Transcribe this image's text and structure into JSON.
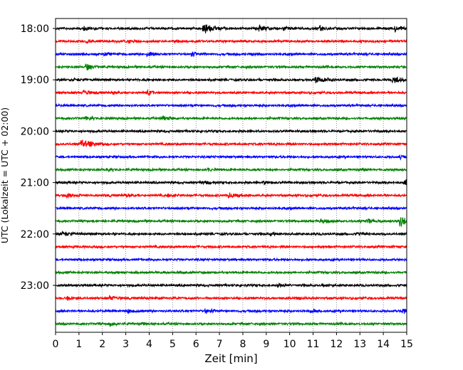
{
  "chart_data": {
    "type": "line",
    "title": "",
    "xlabel": "Zeit  [min]",
    "ylabel": "UTC (Lokalzeit = UTC + 02:00)",
    "xlim": [
      0,
      15
    ],
    "x_ticks": [
      "0",
      "1",
      "2",
      "3",
      "4",
      "5",
      "6",
      "7",
      "8",
      "9",
      "10",
      "11",
      "12",
      "13",
      "14",
      "15"
    ],
    "y_ticks": [
      {
        "label": "18:00",
        "row": 0
      },
      {
        "label": "19:00",
        "row": 4
      },
      {
        "label": "20:00",
        "row": 8
      },
      {
        "label": "21:00",
        "row": 12
      },
      {
        "label": "22:00",
        "row": 16
      },
      {
        "label": "23:00",
        "row": 20
      }
    ],
    "grid": "vertical dotted lines at each minute",
    "row_interval_minutes": 15,
    "colors": [
      "#000000",
      "#ff0000",
      "#0000ff",
      "#008000"
    ],
    "series": [
      {
        "start": "18:00",
        "color": "#000000",
        "events": [
          [
            1.2,
            0.45
          ],
          [
            6.3,
            1.0
          ],
          [
            8.7,
            0.6
          ],
          [
            9.7,
            0.35
          ],
          [
            11.3,
            0.45
          ],
          [
            14.5,
            0.55
          ]
        ]
      },
      {
        "start": "18:15",
        "color": "#ff0000",
        "events": [
          [
            1.3,
            0.3
          ],
          [
            3.1,
            0.3
          ],
          [
            5.1,
            0.25
          ],
          [
            8.0,
            0.2
          ]
        ]
      },
      {
        "start": "18:30",
        "color": "#0000ff",
        "events": [
          [
            2.1,
            0.25
          ],
          [
            3.9,
            0.4
          ],
          [
            5.8,
            0.35
          ],
          [
            8.3,
            0.25
          ],
          [
            15.0,
            0.4
          ]
        ]
      },
      {
        "start": "18:45",
        "color": "#008000",
        "events": [
          [
            1.3,
            0.6
          ]
        ]
      },
      {
        "start": "19:00",
        "color": "#000000",
        "events": [
          [
            0.8,
            0.25
          ],
          [
            11.1,
            0.7
          ],
          [
            14.4,
            0.7
          ]
        ]
      },
      {
        "start": "19:15",
        "color": "#ff0000",
        "events": [
          [
            1.2,
            0.45
          ],
          [
            2.4,
            0.3
          ],
          [
            3.9,
            0.45
          ]
        ]
      },
      {
        "start": "19:30",
        "color": "#0000ff",
        "events": []
      },
      {
        "start": "19:45",
        "color": "#008000",
        "events": [
          [
            1.3,
            0.35
          ],
          [
            2.1,
            0.25
          ],
          [
            4.6,
            0.4
          ]
        ]
      },
      {
        "start": "20:00",
        "color": "#000000",
        "events": []
      },
      {
        "start": "20:15",
        "color": "#ff0000",
        "events": [
          [
            1.1,
            0.7
          ],
          [
            1.4,
            0.35
          ]
        ]
      },
      {
        "start": "20:30",
        "color": "#0000ff",
        "events": [
          [
            14.7,
            0.3
          ]
        ]
      },
      {
        "start": "20:45",
        "color": "#008000",
        "events": [
          [
            2.2,
            0.3
          ],
          [
            6.5,
            0.2
          ],
          [
            8.5,
            0.2
          ],
          [
            13.1,
            0.25
          ]
        ]
      },
      {
        "start": "21:00",
        "color": "#000000",
        "events": [
          [
            6.3,
            0.35
          ],
          [
            8.9,
            0.25
          ],
          [
            14.9,
            0.55
          ]
        ]
      },
      {
        "start": "21:15",
        "color": "#ff0000",
        "events": [
          [
            0.5,
            0.45
          ],
          [
            3.0,
            0.4
          ],
          [
            4.8,
            0.35
          ],
          [
            7.4,
            0.45
          ],
          [
            7.6,
            0.4
          ]
        ]
      },
      {
        "start": "21:30",
        "color": "#0000ff",
        "events": []
      },
      {
        "start": "21:45",
        "color": "#008000",
        "events": [
          [
            11.3,
            0.45
          ],
          [
            13.3,
            0.5
          ],
          [
            14.7,
            1.0
          ]
        ]
      },
      {
        "start": "22:00",
        "color": "#000000",
        "events": [
          [
            0.3,
            0.45
          ],
          [
            9.2,
            0.25
          ],
          [
            12.9,
            0.2
          ]
        ]
      },
      {
        "start": "22:15",
        "color": "#ff0000",
        "events": []
      },
      {
        "start": "22:30",
        "color": "#0000ff",
        "events": []
      },
      {
        "start": "22:45",
        "color": "#008000",
        "events": []
      },
      {
        "start": "23:00",
        "color": "#000000",
        "events": [
          [
            9.5,
            0.3
          ],
          [
            11.4,
            0.25
          ]
        ]
      },
      {
        "start": "23:15",
        "color": "#ff0000",
        "events": [
          [
            0.5,
            0.3
          ],
          [
            2.3,
            0.5
          ],
          [
            10.3,
            0.35
          ]
        ]
      },
      {
        "start": "23:30",
        "color": "#0000ff",
        "events": [
          [
            3.1,
            0.35
          ],
          [
            6.4,
            0.45
          ],
          [
            10.9,
            0.3
          ],
          [
            14.8,
            0.45
          ]
        ]
      },
      {
        "start": "23:45",
        "color": "#008000",
        "events": [
          [
            2.3,
            0.35
          ],
          [
            3.7,
            0.2
          ]
        ]
      }
    ]
  }
}
